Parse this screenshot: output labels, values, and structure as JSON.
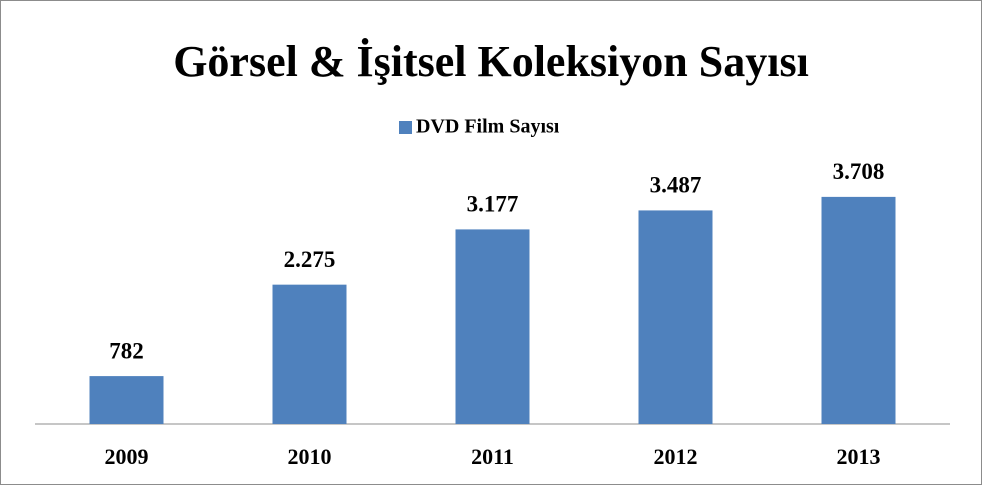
{
  "chart_data": {
    "type": "bar",
    "title": "Görsel & İşitsel Koleksiyon Sayısı",
    "categories": [
      "2009",
      "2010",
      "2011",
      "2012",
      "2013"
    ],
    "series": [
      {
        "name": "DVD Film Sayısı",
        "color": "#4f81bd",
        "values": [
          782,
          2275,
          3177,
          3487,
          3708
        ],
        "value_labels": [
          "782",
          "2.275",
          "3.177",
          "3.487",
          "3.708"
        ]
      }
    ],
    "ylim": [
      0,
      4000
    ],
    "legend": "top"
  }
}
